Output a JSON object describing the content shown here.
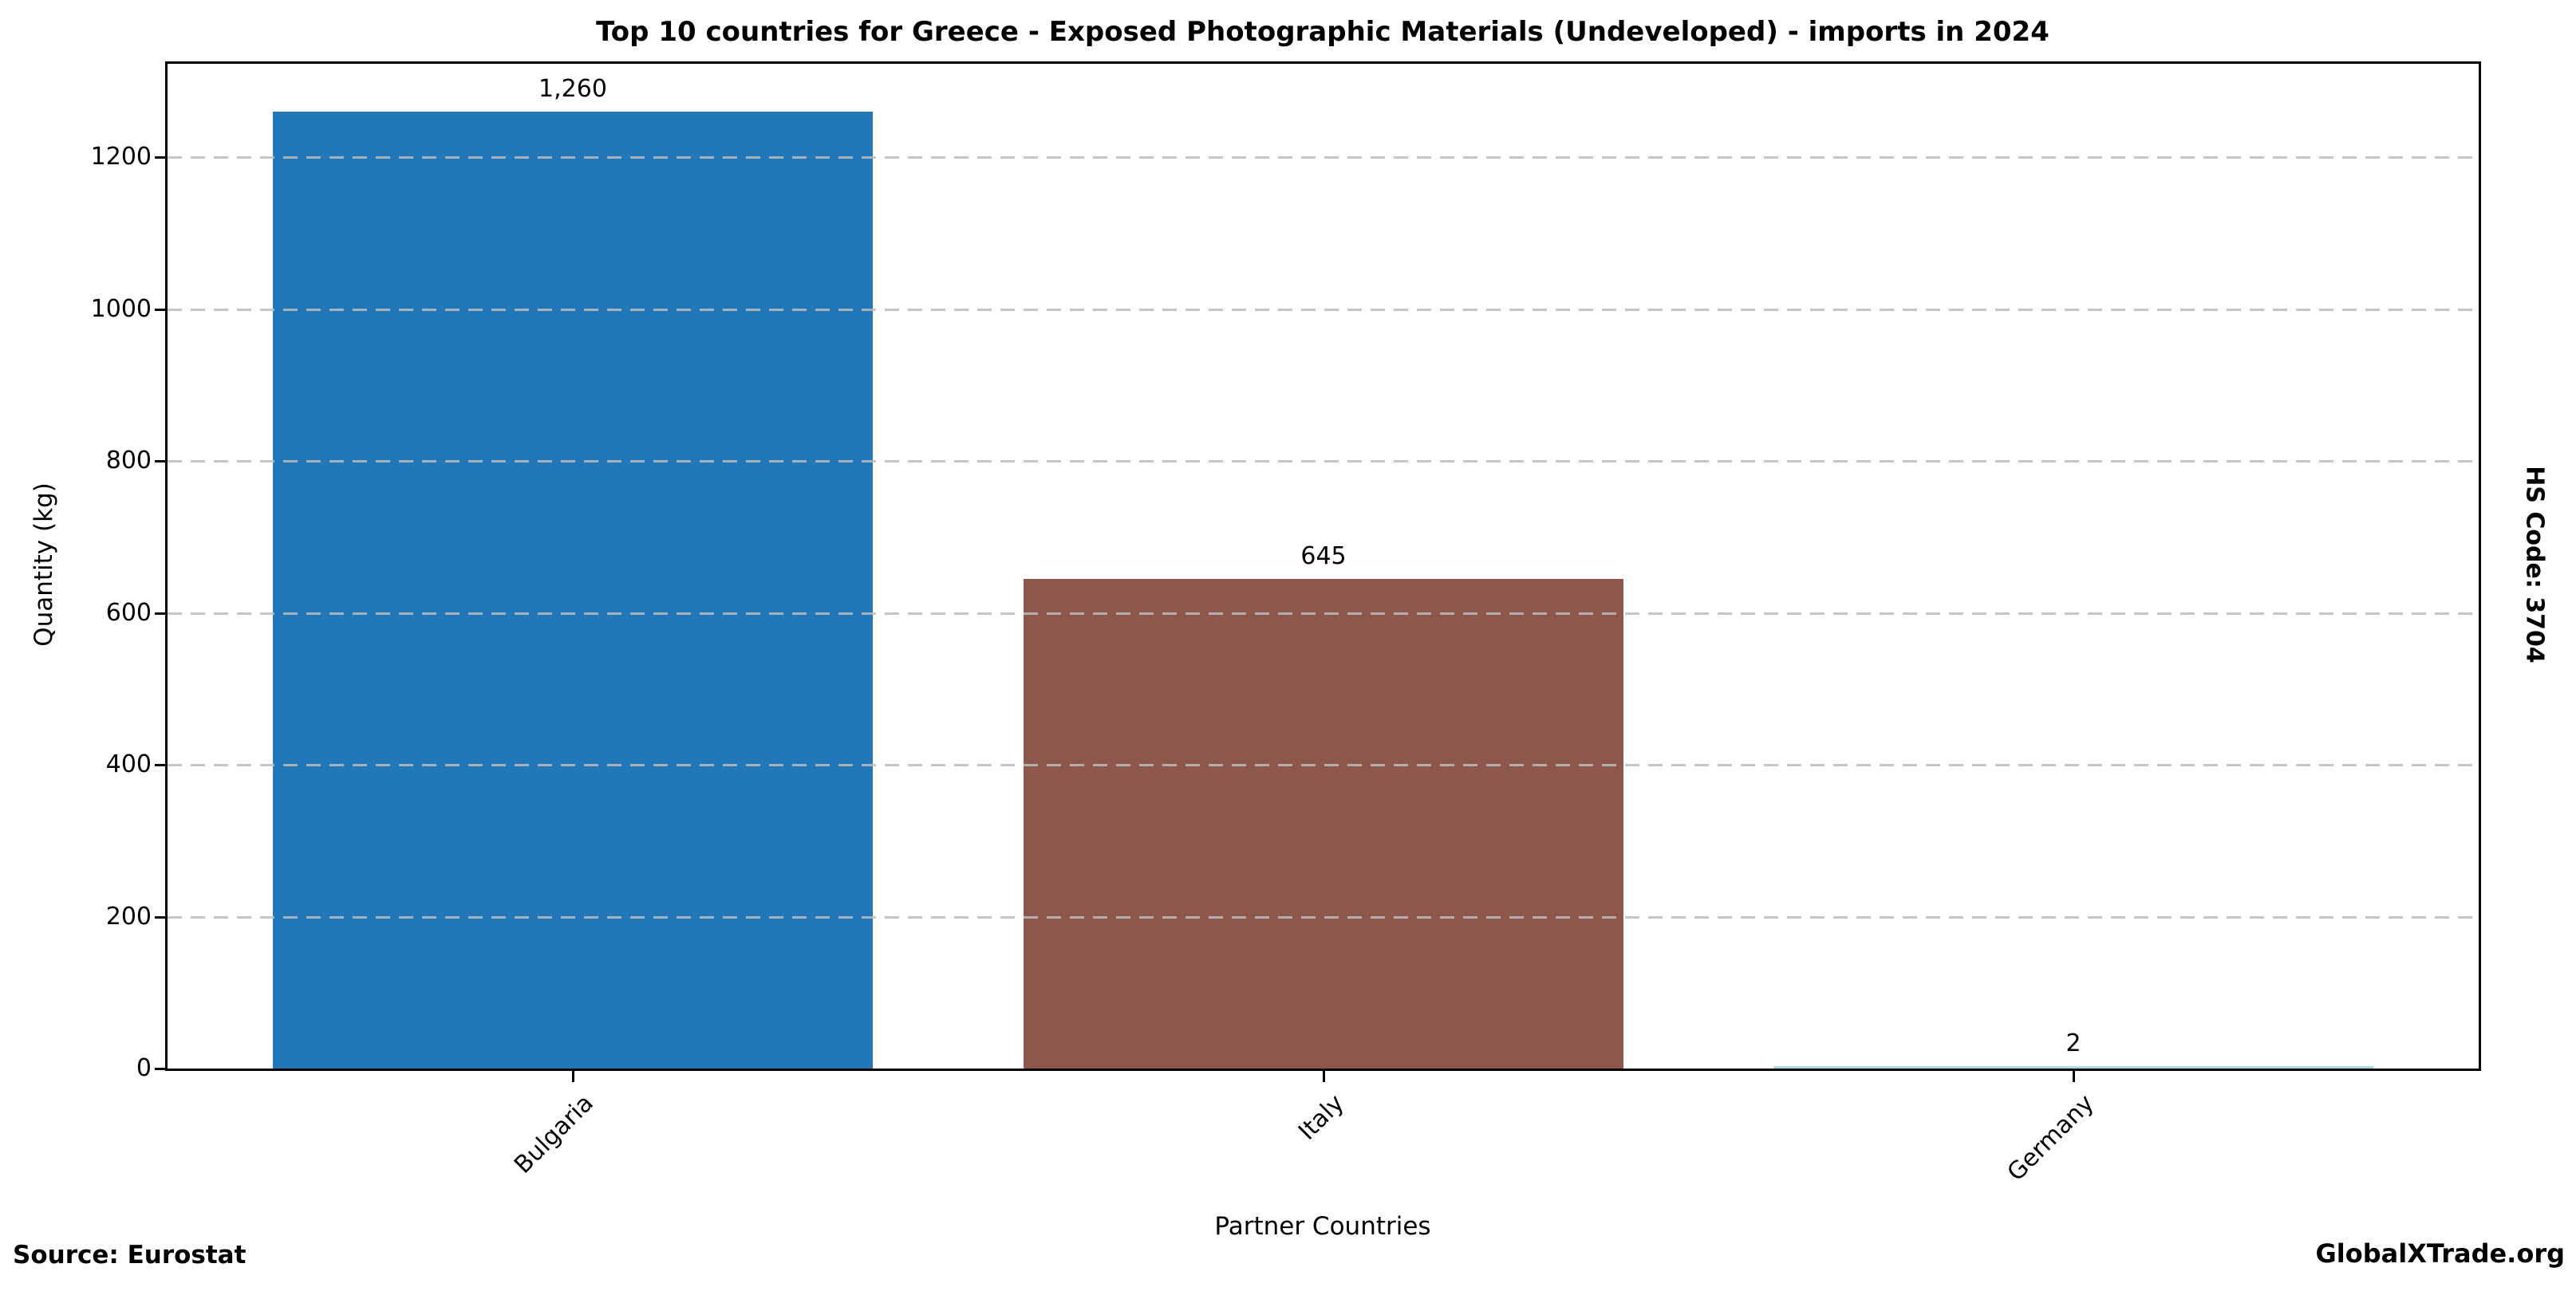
{
  "side_label": "HS Code: 3704",
  "footer": {
    "source": "Source: Eurostat",
    "brand": "GlobalXTrade.org"
  },
  "chart_data": {
    "type": "bar",
    "title": "Top 10 countries for Greece - Exposed Photographic Materials (Undeveloped) - imports in 2024",
    "categories": [
      "Bulgaria",
      "Italy",
      "Germany"
    ],
    "values": [
      1260,
      645,
      2
    ],
    "value_labels": [
      "1,260",
      "645",
      "2"
    ],
    "bar_colors": [
      "#2177b7",
      "#8d574c",
      "#add8e6"
    ],
    "xlabel": "Partner Countries",
    "ylabel": "Quantity (kg)",
    "yticks": [
      0,
      200,
      400,
      600,
      800,
      1000,
      1200
    ],
    "ylim": [
      0,
      1323
    ],
    "grid": {
      "axis": "y",
      "style": "dashed",
      "color": "#c9c9c9"
    },
    "legend": null,
    "axis_color": "#000000",
    "background_color": "#ffffff"
  }
}
